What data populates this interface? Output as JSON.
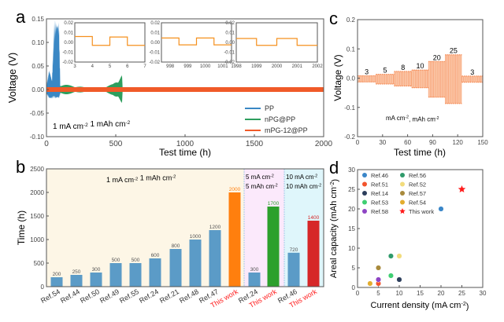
{
  "chart_data": [
    {
      "panel": "a",
      "type": "line",
      "panel_label": "a",
      "xlabel": "Test time (h)",
      "ylabel": "Voltage (V)",
      "xlim": [
        0,
        2000
      ],
      "ylim": [
        -0.1,
        0.15
      ],
      "xticks": [
        "0",
        "500",
        "1000",
        "1500",
        "2000"
      ],
      "yticks": [
        "-0.10",
        "-0.05",
        "0.00",
        "0.05",
        "0.10",
        "0.15"
      ],
      "annotation": {
        "current": "1 mA cm",
        "current_sup": "-2",
        "capacity": "1 mAh cm",
        "capacity_sup": "-2"
      },
      "legend_position": "bottom-right",
      "series": [
        {
          "name": "PP",
          "color": "#3a87c4",
          "envelope": {
            "t": [
              0,
              20,
              40,
              55,
              65,
              80,
              90,
              100
            ],
            "upper": [
              0.01,
              0.045,
              0.02,
              0.15,
              0.15,
              0.15,
              0.15,
              0.01
            ],
            "lower": [
              -0.01,
              -0.02,
              -0.02,
              -0.018,
              -0.02,
              -0.018,
              -0.02,
              -0.01
            ]
          }
        },
        {
          "name": "nPG@PP",
          "color": "#2e9e5e",
          "envelope": {
            "t": [
              0,
              100,
              150,
              300,
              420,
              480,
              520,
              545,
              550
            ],
            "upper": [
              0.015,
              0.012,
              0.01,
              0.004,
              0.005,
              0.012,
              0.025,
              0.035,
              0
            ],
            "lower": [
              -0.015,
              -0.012,
              -0.01,
              -0.004,
              -0.005,
              -0.012,
              -0.025,
              -0.033,
              0
            ]
          }
        },
        {
          "name": "mPG-12@PP",
          "color": "#f05a28",
          "envelope": {
            "t": [
              0,
              2000
            ],
            "upper": [
              0.005,
              0.005
            ],
            "lower": [
              -0.005,
              -0.005
            ]
          }
        }
      ],
      "insets": [
        {
          "xlim": [
            3,
            7
          ],
          "xticks": [
            "3",
            "4",
            "5",
            "6",
            "7"
          ],
          "ylim": [
            -0.02,
            0.02
          ],
          "yticks": [
            "-0.02",
            "-0.01",
            "0.00",
            "0.01",
            "0.02"
          ],
          "start_x": 3,
          "steps": [
            [
              3,
              4,
              0.006
            ],
            [
              4,
              5,
              -0.003
            ],
            [
              5,
              6,
              0.0055
            ],
            [
              6,
              7,
              -0.003
            ]
          ]
        },
        {
          "xlim": [
            997.5,
            1001.5
          ],
          "xticks": [
            "998",
            "999",
            "1000",
            "1001"
          ],
          "ylim": [
            -0.02,
            0.02
          ],
          "yticks": [
            "-0.02",
            "-0.01",
            "0.00",
            "0.01",
            "0.02"
          ],
          "steps": [
            [
              997.5,
              998.5,
              0.0045
            ],
            [
              998.5,
              999.5,
              -0.0025
            ],
            [
              999.5,
              1000.5,
              0.0045
            ],
            [
              1000.5,
              1001.5,
              -0.0025
            ]
          ]
        },
        {
          "xlim": [
            1998,
            2002
          ],
          "xticks": [
            "1998",
            "1999",
            "2000",
            "2001",
            "2002"
          ],
          "ylim": [
            -0.02,
            0.02
          ],
          "yticks": [
            "-0.02",
            "-0.01",
            "0.00",
            "0.01",
            "0.02"
          ],
          "steps": [
            [
              1998,
              1999,
              0.004
            ],
            [
              1999,
              2000,
              -0.003
            ],
            [
              2000,
              2001,
              0.004
            ],
            [
              2001,
              2002,
              -0.003
            ]
          ]
        }
      ]
    },
    {
      "panel": "c",
      "type": "area",
      "panel_label": "c",
      "xlabel": "Test time (h)",
      "ylabel": "Voltage (V)",
      "xlim": [
        0,
        150
      ],
      "ylim": [
        -0.2,
        0.2
      ],
      "xticks": [
        "0",
        "30",
        "60",
        "90",
        "120",
        "150"
      ],
      "yticks": [
        "-0.2",
        "-0.1",
        "0.0",
        "0.1",
        "0.2"
      ],
      "color": "#f47a3c",
      "annotation": {
        "a": "mA cm",
        "a_sup": "-2",
        "b": ",  mAh cm",
        "b_sup": "-2"
      },
      "segments": [
        {
          "label": "3",
          "t0": 0,
          "t1": 22,
          "upper": 0.008,
          "lower": -0.013
        },
        {
          "label": "5",
          "t0": 22,
          "t1": 44,
          "upper": 0.013,
          "lower": -0.02
        },
        {
          "label": "8",
          "t0": 44,
          "t1": 65,
          "upper": 0.023,
          "lower": -0.027
        },
        {
          "label": "10",
          "t0": 65,
          "t1": 85,
          "upper": 0.028,
          "lower": -0.033
        },
        {
          "label": "20",
          "t0": 85,
          "t1": 105,
          "upper": 0.057,
          "lower": -0.065
        },
        {
          "label": "25",
          "t0": 105,
          "t1": 125,
          "upper": 0.08,
          "lower": -0.087
        },
        {
          "label": "3",
          "t0": 125,
          "t1": 150,
          "upper": 0.007,
          "lower": -0.014
        }
      ]
    },
    {
      "panel": "b",
      "type": "bar",
      "panel_label": "b",
      "ylabel": "Time (h)",
      "ylim": [
        0,
        2500
      ],
      "yticks": [
        "0",
        "500",
        "1000",
        "1500",
        "2000",
        "2500"
      ],
      "categories": [
        "Ref.54",
        "Ref.44",
        "Ref.50",
        "Ref.49",
        "Ref.55",
        "Ref.24",
        "Ref.21",
        "Ref.48",
        "Ref.47",
        "This work",
        "Ref.24",
        "This work",
        "Ref.46",
        "This work"
      ],
      "values": [
        200,
        250,
        300,
        500,
        500,
        600,
        800,
        1000,
        1200,
        2000,
        300,
        1700,
        720,
        1400
      ],
      "labels": [
        "200",
        "250",
        "300",
        "500",
        "500",
        "600",
        "800",
        "1000",
        "1200",
        "2000",
        "300",
        "1700",
        "720",
        "1400"
      ],
      "bar_colors": [
        "#5b9bc7",
        "#5b9bc7",
        "#5b9bc7",
        "#5b9bc7",
        "#5b9bc7",
        "#5b9bc7",
        "#5b9bc7",
        "#5b9bc7",
        "#5b9bc7",
        "#ff7f0e",
        "#5b9bc7",
        "#2ca02c",
        "#5b9bc7",
        "#d62728"
      ],
      "highlight_label_color": "#ff2020",
      "groups": [
        {
          "start": 0,
          "end": 9,
          "bg": "#fdf6e6",
          "line1": "1 mA cm",
          "sup1": "-2",
          "line2": "1 mAh cm",
          "sup2": "-2"
        },
        {
          "start": 10,
          "end": 11,
          "bg": "#fbe9fb",
          "line1": "5 mA cm",
          "sup1": "-2",
          "line2": "5 mAh cm",
          "sup2": "-2"
        },
        {
          "start": 12,
          "end": 13,
          "bg": "#dff6fb",
          "line1": "10 mA cm",
          "sup1": "-2",
          "line2": "10 mAh cm",
          "sup2": "-2"
        }
      ]
    },
    {
      "panel": "d",
      "type": "scatter",
      "panel_label": "d",
      "xlabel": "Current density (mA cm",
      "xlabel_sup": "-2",
      "xlabel_end": ")",
      "ylabel": "Areal capacity (mAh cm",
      "ylabel_sup": "-2",
      "ylabel_end": ")",
      "xlim": [
        0,
        30
      ],
      "ylim": [
        0,
        30
      ],
      "xticks": [
        "0",
        "5",
        "10",
        "15",
        "20",
        "25",
        "30"
      ],
      "yticks": [
        "0",
        "5",
        "10",
        "15",
        "20",
        "25",
        "30"
      ],
      "legend_position": "top-left",
      "points": [
        {
          "name": "Ref.46",
          "x": 20,
          "y": 20,
          "color": "#3a86c8"
        },
        {
          "name": "Ref.51",
          "x": 5,
          "y": 1,
          "color": "#f2542d"
        },
        {
          "name": "Ref.14",
          "x": 10,
          "y": 2,
          "color": "#2c3e5c"
        },
        {
          "name": "Ref.53",
          "x": 8,
          "y": 3,
          "color": "#3fcf72"
        },
        {
          "name": "Ref.58",
          "x": 5,
          "y": 2,
          "color": "#8e44c4"
        },
        {
          "name": "Ref.56",
          "x": 8,
          "y": 8,
          "color": "#2f9a6a"
        },
        {
          "name": "Ref.52",
          "x": 10,
          "y": 8,
          "color": "#f2dc7c"
        },
        {
          "name": "Ref.57",
          "x": 5,
          "y": 5,
          "color": "#a88a3c"
        },
        {
          "name": "Ref.54",
          "x": 3,
          "y": 1,
          "color": "#e3ad2e"
        },
        {
          "name": "This work",
          "x": 25,
          "y": 25,
          "color": "#ff1a1a",
          "marker": "star"
        }
      ]
    }
  ]
}
